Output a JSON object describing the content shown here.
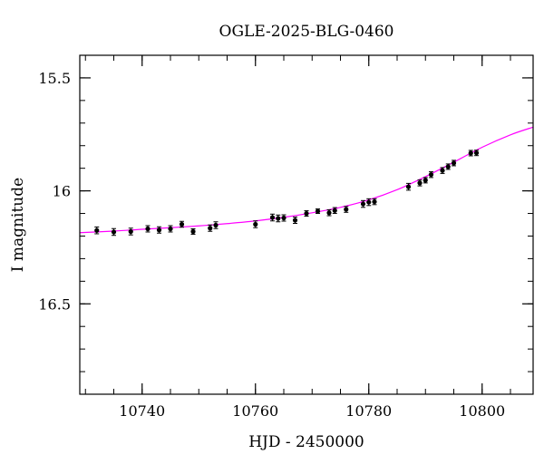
{
  "chart_data": {
    "type": "scatter",
    "title": "OGLE-2025-BLG-0460",
    "xlabel": "HJD - 2450000",
    "ylabel": "I magnitude",
    "xlim": [
      10729,
      10809
    ],
    "ylim": [
      16.9,
      15.4
    ],
    "y_inverted": true,
    "grid": false,
    "colors": {
      "points": "#000000",
      "model": "#ff00ff",
      "frame": "#000000"
    },
    "x_ticks": {
      "major": [
        10740,
        10760,
        10780,
        10800
      ],
      "labels": [
        "10740",
        "10760",
        "10780",
        "10800"
      ],
      "minor_step": 5
    },
    "y_ticks": {
      "major": [
        15.5,
        16,
        16.5
      ],
      "labels": [
        "15.5",
        "16",
        "16.5"
      ],
      "minor_step": 0.1
    },
    "series": [
      {
        "kind": "points_with_errors",
        "points": [
          {
            "x": 10732,
            "y": 16.175,
            "err": 0.015
          },
          {
            "x": 10735,
            "y": 16.182,
            "err": 0.015
          },
          {
            "x": 10738,
            "y": 16.18,
            "err": 0.015
          },
          {
            "x": 10741,
            "y": 16.168,
            "err": 0.014
          },
          {
            "x": 10743,
            "y": 16.173,
            "err": 0.014
          },
          {
            "x": 10745,
            "y": 16.168,
            "err": 0.014
          },
          {
            "x": 10747,
            "y": 16.148,
            "err": 0.013
          },
          {
            "x": 10749,
            "y": 16.18,
            "err": 0.012
          },
          {
            "x": 10752,
            "y": 16.165,
            "err": 0.014
          },
          {
            "x": 10753,
            "y": 16.152,
            "err": 0.015
          },
          {
            "x": 10760,
            "y": 16.148,
            "err": 0.015
          },
          {
            "x": 10763,
            "y": 16.118,
            "err": 0.015
          },
          {
            "x": 10764,
            "y": 16.122,
            "err": 0.015
          },
          {
            "x": 10765,
            "y": 16.12,
            "err": 0.014
          },
          {
            "x": 10767,
            "y": 16.13,
            "err": 0.014
          },
          {
            "x": 10769,
            "y": 16.1,
            "err": 0.012
          },
          {
            "x": 10771,
            "y": 16.09,
            "err": 0.01
          },
          {
            "x": 10773,
            "y": 16.097,
            "err": 0.013
          },
          {
            "x": 10774,
            "y": 16.087,
            "err": 0.013
          },
          {
            "x": 10776,
            "y": 16.082,
            "err": 0.013
          },
          {
            "x": 10779,
            "y": 16.058,
            "err": 0.015
          },
          {
            "x": 10780,
            "y": 16.05,
            "err": 0.015
          },
          {
            "x": 10781,
            "y": 16.048,
            "err": 0.013
          },
          {
            "x": 10787,
            "y": 15.982,
            "err": 0.015
          },
          {
            "x": 10789,
            "y": 15.965,
            "err": 0.013
          },
          {
            "x": 10790,
            "y": 15.953,
            "err": 0.012
          },
          {
            "x": 10791,
            "y": 15.928,
            "err": 0.013
          },
          {
            "x": 10793,
            "y": 15.91,
            "err": 0.013
          },
          {
            "x": 10794,
            "y": 15.893,
            "err": 0.012
          },
          {
            "x": 10795,
            "y": 15.877,
            "err": 0.012
          },
          {
            "x": 10798,
            "y": 15.833,
            "err": 0.012
          },
          {
            "x": 10799,
            "y": 15.832,
            "err": 0.012
          }
        ]
      },
      {
        "kind": "model_curve",
        "x": [
          10729,
          10735,
          10740,
          10745,
          10750,
          10755,
          10760,
          10765,
          10770,
          10775,
          10780,
          10785,
          10790,
          10795,
          10800,
          10805,
          10809
        ],
        "y": [
          16.185,
          16.178,
          16.17,
          16.163,
          16.155,
          16.145,
          16.133,
          16.117,
          16.097,
          16.073,
          16.04,
          15.995,
          15.937,
          15.873,
          15.807,
          15.752,
          15.718
        ]
      }
    ]
  }
}
